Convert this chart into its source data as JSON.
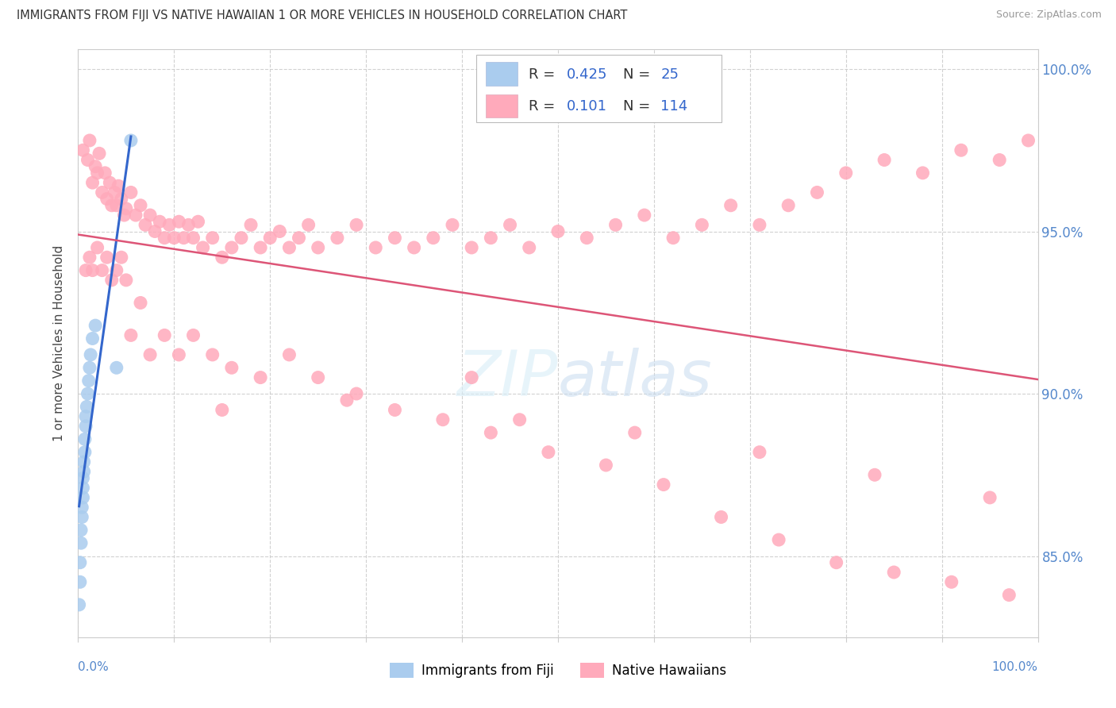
{
  "title": "IMMIGRANTS FROM FIJI VS NATIVE HAWAIIAN 1 OR MORE VEHICLES IN HOUSEHOLD CORRELATION CHART",
  "source": "Source: ZipAtlas.com",
  "ylabel": "1 or more Vehicles in Household",
  "legend_label1": "Immigrants from Fiji",
  "legend_label2": "Native Hawaiians",
  "R1": 0.425,
  "N1": 25,
  "R2": 0.101,
  "N2": 114,
  "blue_dot_color": "#AACCEE",
  "pink_dot_color": "#FFAABB",
  "blue_trend_color": "#3366CC",
  "pink_trend_color": "#DD5577",
  "rn_color": "#3366CC",
  "axis_tick_color": "#5588CC",
  "grid_color": "#CCCCCC",
  "xmin": 0.0,
  "xmax": 1.0,
  "ymin": 0.825,
  "ymax": 1.006,
  "yticks": [
    0.85,
    0.9,
    0.95,
    1.0
  ],
  "ytick_labels": [
    "85.0%",
    "90.0%",
    "95.0%",
    "100.0%"
  ],
  "blue_x": [
    0.001,
    0.002,
    0.002,
    0.003,
    0.003,
    0.004,
    0.004,
    0.005,
    0.005,
    0.005,
    0.006,
    0.006,
    0.007,
    0.007,
    0.008,
    0.008,
    0.009,
    0.01,
    0.011,
    0.012,
    0.013,
    0.015,
    0.018,
    0.04,
    0.055
  ],
  "blue_y": [
    0.835,
    0.842,
    0.848,
    0.854,
    0.858,
    0.862,
    0.865,
    0.868,
    0.871,
    0.874,
    0.876,
    0.879,
    0.882,
    0.886,
    0.89,
    0.893,
    0.896,
    0.9,
    0.904,
    0.908,
    0.912,
    0.917,
    0.921,
    0.908,
    0.978
  ],
  "pink_x": [
    0.005,
    0.01,
    0.012,
    0.015,
    0.018,
    0.02,
    0.022,
    0.025,
    0.028,
    0.03,
    0.033,
    0.035,
    0.038,
    0.04,
    0.042,
    0.045,
    0.048,
    0.05,
    0.055,
    0.06,
    0.065,
    0.07,
    0.075,
    0.08,
    0.085,
    0.09,
    0.095,
    0.1,
    0.105,
    0.11,
    0.115,
    0.12,
    0.125,
    0.13,
    0.14,
    0.15,
    0.16,
    0.17,
    0.18,
    0.19,
    0.2,
    0.21,
    0.22,
    0.23,
    0.24,
    0.25,
    0.27,
    0.29,
    0.31,
    0.33,
    0.35,
    0.37,
    0.39,
    0.41,
    0.43,
    0.45,
    0.47,
    0.5,
    0.53,
    0.56,
    0.59,
    0.62,
    0.65,
    0.68,
    0.71,
    0.74,
    0.77,
    0.8,
    0.84,
    0.88,
    0.92,
    0.96,
    0.99,
    0.008,
    0.012,
    0.015,
    0.02,
    0.025,
    0.03,
    0.035,
    0.04,
    0.045,
    0.05,
    0.055,
    0.065,
    0.075,
    0.09,
    0.105,
    0.12,
    0.14,
    0.16,
    0.19,
    0.22,
    0.25,
    0.29,
    0.33,
    0.38,
    0.43,
    0.49,
    0.55,
    0.61,
    0.67,
    0.73,
    0.79,
    0.85,
    0.91,
    0.97,
    0.46,
    0.58,
    0.71,
    0.83,
    0.95,
    0.15,
    0.28,
    0.41
  ],
  "pink_y": [
    0.975,
    0.972,
    0.978,
    0.965,
    0.97,
    0.968,
    0.974,
    0.962,
    0.968,
    0.96,
    0.965,
    0.958,
    0.962,
    0.958,
    0.964,
    0.96,
    0.955,
    0.957,
    0.962,
    0.955,
    0.958,
    0.952,
    0.955,
    0.95,
    0.953,
    0.948,
    0.952,
    0.948,
    0.953,
    0.948,
    0.952,
    0.948,
    0.953,
    0.945,
    0.948,
    0.942,
    0.945,
    0.948,
    0.952,
    0.945,
    0.948,
    0.95,
    0.945,
    0.948,
    0.952,
    0.945,
    0.948,
    0.952,
    0.945,
    0.948,
    0.945,
    0.948,
    0.952,
    0.945,
    0.948,
    0.952,
    0.945,
    0.95,
    0.948,
    0.952,
    0.955,
    0.948,
    0.952,
    0.958,
    0.952,
    0.958,
    0.962,
    0.968,
    0.972,
    0.968,
    0.975,
    0.972,
    0.978,
    0.938,
    0.942,
    0.938,
    0.945,
    0.938,
    0.942,
    0.935,
    0.938,
    0.942,
    0.935,
    0.918,
    0.928,
    0.912,
    0.918,
    0.912,
    0.918,
    0.912,
    0.908,
    0.905,
    0.912,
    0.905,
    0.9,
    0.895,
    0.892,
    0.888,
    0.882,
    0.878,
    0.872,
    0.862,
    0.855,
    0.848,
    0.845,
    0.842,
    0.838,
    0.892,
    0.888,
    0.882,
    0.875,
    0.868,
    0.895,
    0.898,
    0.905
  ]
}
